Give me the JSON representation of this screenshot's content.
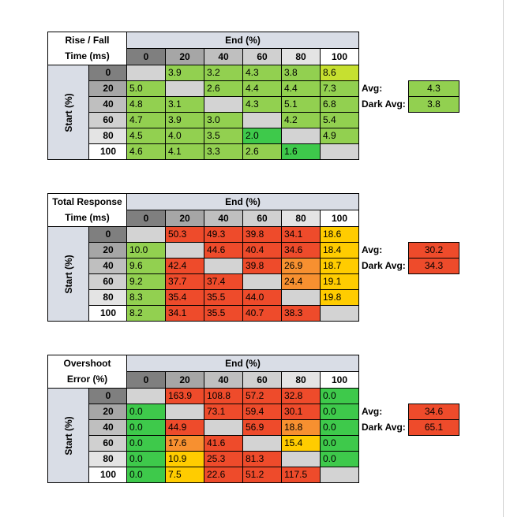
{
  "colors": {
    "green_bright": "#92d050",
    "green_dark": "#3ec94b",
    "yellow_green": "#c6e030",
    "yellow": "#ffcc00",
    "orange": "#f79030",
    "red": "#ee4b2b",
    "empty": "#d3d3d3",
    "header_bg": "#d9dde6"
  },
  "chart_data": [
    {
      "type": "table",
      "title_line1": "Rise / Fall",
      "title_line2": "Time (ms)",
      "end_label": "End (%)",
      "start_label": "Start (%)",
      "columns": [
        "0",
        "20",
        "40",
        "60",
        "80",
        "100"
      ],
      "rows": [
        "0",
        "20",
        "40",
        "60",
        "80",
        "100"
      ],
      "values": [
        [
          null,
          "3.9",
          "3.2",
          "4.3",
          "3.8",
          "8.6"
        ],
        [
          "5.0",
          null,
          "2.6",
          "4.4",
          "4.4",
          "7.3"
        ],
        [
          "4.8",
          "3.1",
          null,
          "4.3",
          "5.1",
          "6.8"
        ],
        [
          "4.7",
          "3.9",
          "3.0",
          null,
          "4.2",
          "5.4"
        ],
        [
          "4.5",
          "4.0",
          "3.5",
          "2.0",
          null,
          "4.9"
        ],
        [
          "4.6",
          "4.1",
          "3.3",
          "2.6",
          "1.6",
          null
        ]
      ],
      "cell_colors": [
        [
          null,
          "green_bright",
          "green_bright",
          "green_bright",
          "green_bright",
          "yellow_green"
        ],
        [
          "green_bright",
          null,
          "green_bright",
          "green_bright",
          "green_bright",
          "green_bright"
        ],
        [
          "green_bright",
          "green_bright",
          null,
          "green_bright",
          "green_bright",
          "green_bright"
        ],
        [
          "green_bright",
          "green_bright",
          "green_bright",
          null,
          "green_bright",
          "green_bright"
        ],
        [
          "green_bright",
          "green_bright",
          "green_bright",
          "green_dark",
          null,
          "green_bright"
        ],
        [
          "green_bright",
          "green_bright",
          "green_bright",
          "green_bright",
          "green_dark",
          null
        ]
      ],
      "avg_label": "Avg:",
      "avg_value": "4.3",
      "avg_color": "green_bright",
      "dark_avg_label": "Dark Avg:",
      "dark_avg_value": "3.8",
      "dark_avg_color": "green_bright"
    },
    {
      "type": "table",
      "title_line1": "Total Response",
      "title_line2": "Time (ms)",
      "end_label": "End (%)",
      "start_label": "Start (%)",
      "columns": [
        "0",
        "20",
        "40",
        "60",
        "80",
        "100"
      ],
      "rows": [
        "0",
        "20",
        "40",
        "60",
        "80",
        "100"
      ],
      "values": [
        [
          null,
          "50.3",
          "49.3",
          "39.8",
          "34.1",
          "18.6"
        ],
        [
          "10.0",
          null,
          "44.6",
          "40.4",
          "34.6",
          "18.4"
        ],
        [
          "9.6",
          "42.4",
          null,
          "39.8",
          "26.9",
          "18.7"
        ],
        [
          "9.2",
          "37.7",
          "37.4",
          null,
          "24.4",
          "19.1"
        ],
        [
          "8.3",
          "35.4",
          "35.5",
          "44.0",
          null,
          "19.8"
        ],
        [
          "8.2",
          "34.1",
          "35.5",
          "40.7",
          "38.3",
          null
        ]
      ],
      "cell_colors": [
        [
          null,
          "red",
          "red",
          "red",
          "red",
          "yellow"
        ],
        [
          "green_bright",
          null,
          "red",
          "red",
          "red",
          "yellow"
        ],
        [
          "green_bright",
          "red",
          null,
          "red",
          "orange",
          "yellow"
        ],
        [
          "green_bright",
          "red",
          "red",
          null,
          "orange",
          "yellow"
        ],
        [
          "green_bright",
          "red",
          "red",
          "red",
          null,
          "yellow"
        ],
        [
          "green_bright",
          "red",
          "red",
          "red",
          "red",
          null
        ]
      ],
      "avg_label": "Avg:",
      "avg_value": "30.2",
      "avg_color": "red",
      "dark_avg_label": "Dark Avg:",
      "dark_avg_value": "34.3",
      "dark_avg_color": "red"
    },
    {
      "type": "table",
      "title_line1": "Overshoot",
      "title_line2": "Error (%)",
      "end_label": "End (%)",
      "start_label": "Start (%)",
      "columns": [
        "0",
        "20",
        "40",
        "60",
        "80",
        "100"
      ],
      "rows": [
        "0",
        "20",
        "40",
        "60",
        "80",
        "100"
      ],
      "values": [
        [
          null,
          "163.9",
          "108.8",
          "57.2",
          "32.8",
          "0.0"
        ],
        [
          "0.0",
          null,
          "73.1",
          "59.4",
          "30.1",
          "0.0"
        ],
        [
          "0.0",
          "44.9",
          null,
          "56.9",
          "18.8",
          "0.0"
        ],
        [
          "0.0",
          "17.6",
          "41.6",
          null,
          "15.4",
          "0.0"
        ],
        [
          "0.0",
          "10.9",
          "25.3",
          "81.3",
          null,
          "0.0"
        ],
        [
          "0.0",
          "7.5",
          "22.6",
          "51.2",
          "117.5",
          null
        ]
      ],
      "cell_colors": [
        [
          null,
          "red",
          "red",
          "red",
          "red",
          "green_dark"
        ],
        [
          "green_dark",
          null,
          "red",
          "red",
          "red",
          "green_dark"
        ],
        [
          "green_dark",
          "red",
          null,
          "red",
          "orange",
          "green_dark"
        ],
        [
          "green_dark",
          "orange",
          "red",
          null,
          "yellow",
          "green_dark"
        ],
        [
          "green_dark",
          "yellow",
          "red",
          "red",
          null,
          "green_dark"
        ],
        [
          "green_dark",
          "yellow",
          "red",
          "red",
          "red",
          null
        ]
      ],
      "avg_label": "Avg:",
      "avg_value": "34.6",
      "avg_color": "red",
      "dark_avg_label": "Dark Avg:",
      "dark_avg_value": "65.1",
      "dark_avg_color": "red"
    }
  ]
}
